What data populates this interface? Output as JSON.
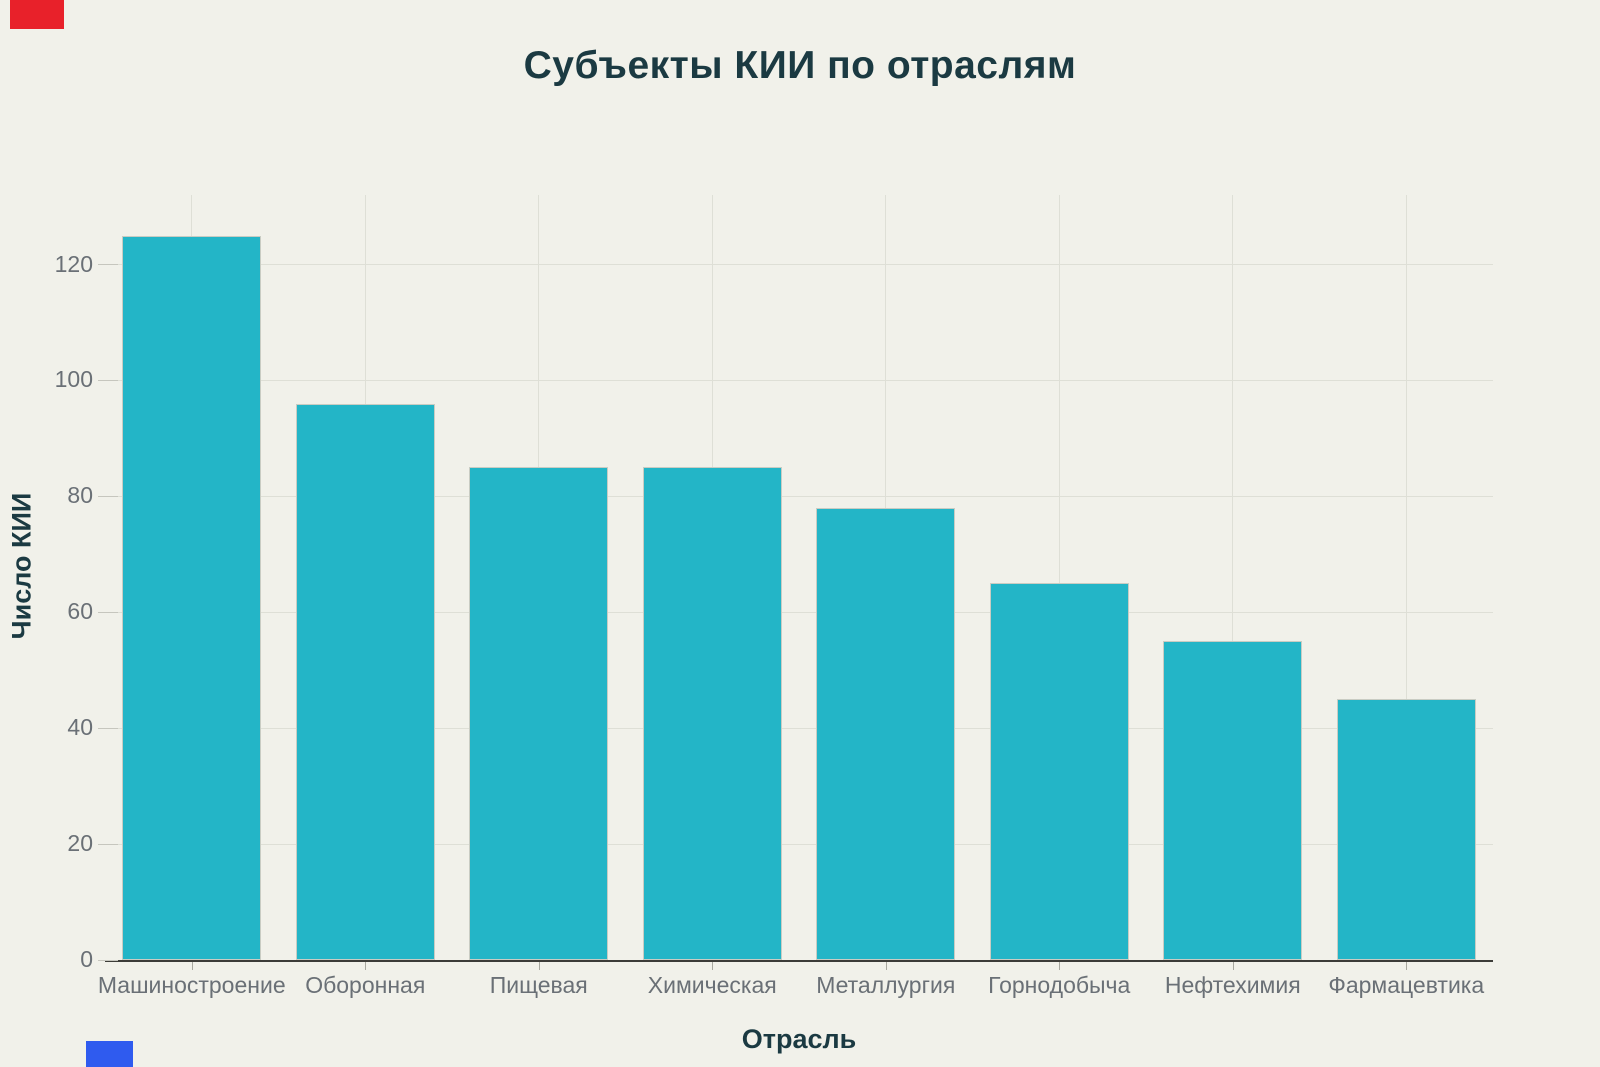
{
  "page": {
    "background": "#f1f1ea"
  },
  "markers": {
    "top_left_color": "#e8212a",
    "bottom_left_color": "#2f5bef"
  },
  "chart_data": {
    "type": "bar",
    "title": "Субъекты КИИ по отраслям",
    "xlabel": "Отрасль",
    "ylabel": "Число КИИ",
    "categories": [
      "Машиностроение",
      "Оборонная",
      "Пищевая",
      "Химическая",
      "Металлургия",
      "Горнодобыча",
      "Нефтехимия",
      "Фармацевтика"
    ],
    "values": [
      125,
      96,
      85,
      85,
      78,
      65,
      55,
      45
    ],
    "yticks": [
      0,
      20,
      40,
      60,
      80,
      100,
      120
    ],
    "ylim": [
      0,
      132
    ],
    "grid": true,
    "legend": "none",
    "bar_color": "#23b5c7",
    "bar_border_color": "#c9ccc3",
    "grid_color": "#dedfd6",
    "axis_line_color": "#3c3c38",
    "tick_label_color": "#6a7076",
    "title_color": "#1b3a42"
  }
}
